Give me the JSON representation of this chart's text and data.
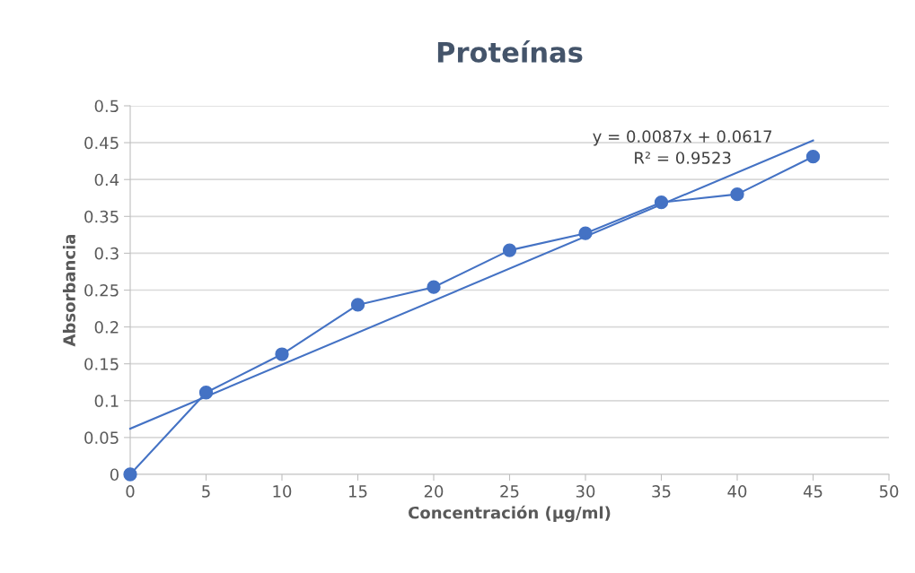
{
  "chart_data": {
    "type": "line",
    "title": "Proteínas",
    "xlabel": "Concentración (µg/ml)",
    "ylabel": "Absorbancia",
    "xlim": [
      0,
      50
    ],
    "xticks": [
      0,
      5,
      10,
      15,
      20,
      25,
      30,
      35,
      40,
      45,
      50
    ],
    "ylim": [
      0,
      0.5
    ],
    "yticks": [
      0,
      0.05,
      0.1,
      0.15,
      0.2,
      0.25,
      0.3,
      0.35,
      0.4,
      0.45,
      0.5
    ],
    "grid": "y",
    "marker": "circle",
    "line_style": "solid",
    "series": [
      {
        "color": "#4472c4",
        "x": [
          0,
          5,
          10,
          15,
          20,
          25,
          30,
          35,
          40,
          45
        ],
        "values": [
          0,
          0.111,
          0.163,
          0.23,
          0.254,
          0.304,
          0.327,
          0.369,
          0.38,
          0.431
        ]
      },
      {
        "color": "#4472c4",
        "marker": "none",
        "x": [
          0,
          45
        ],
        "values": [
          0.062,
          0.453
        ]
      }
    ],
    "annotations": [
      "y = 0.0087x + 0.0617",
      "R² = 0.9523"
    ]
  }
}
